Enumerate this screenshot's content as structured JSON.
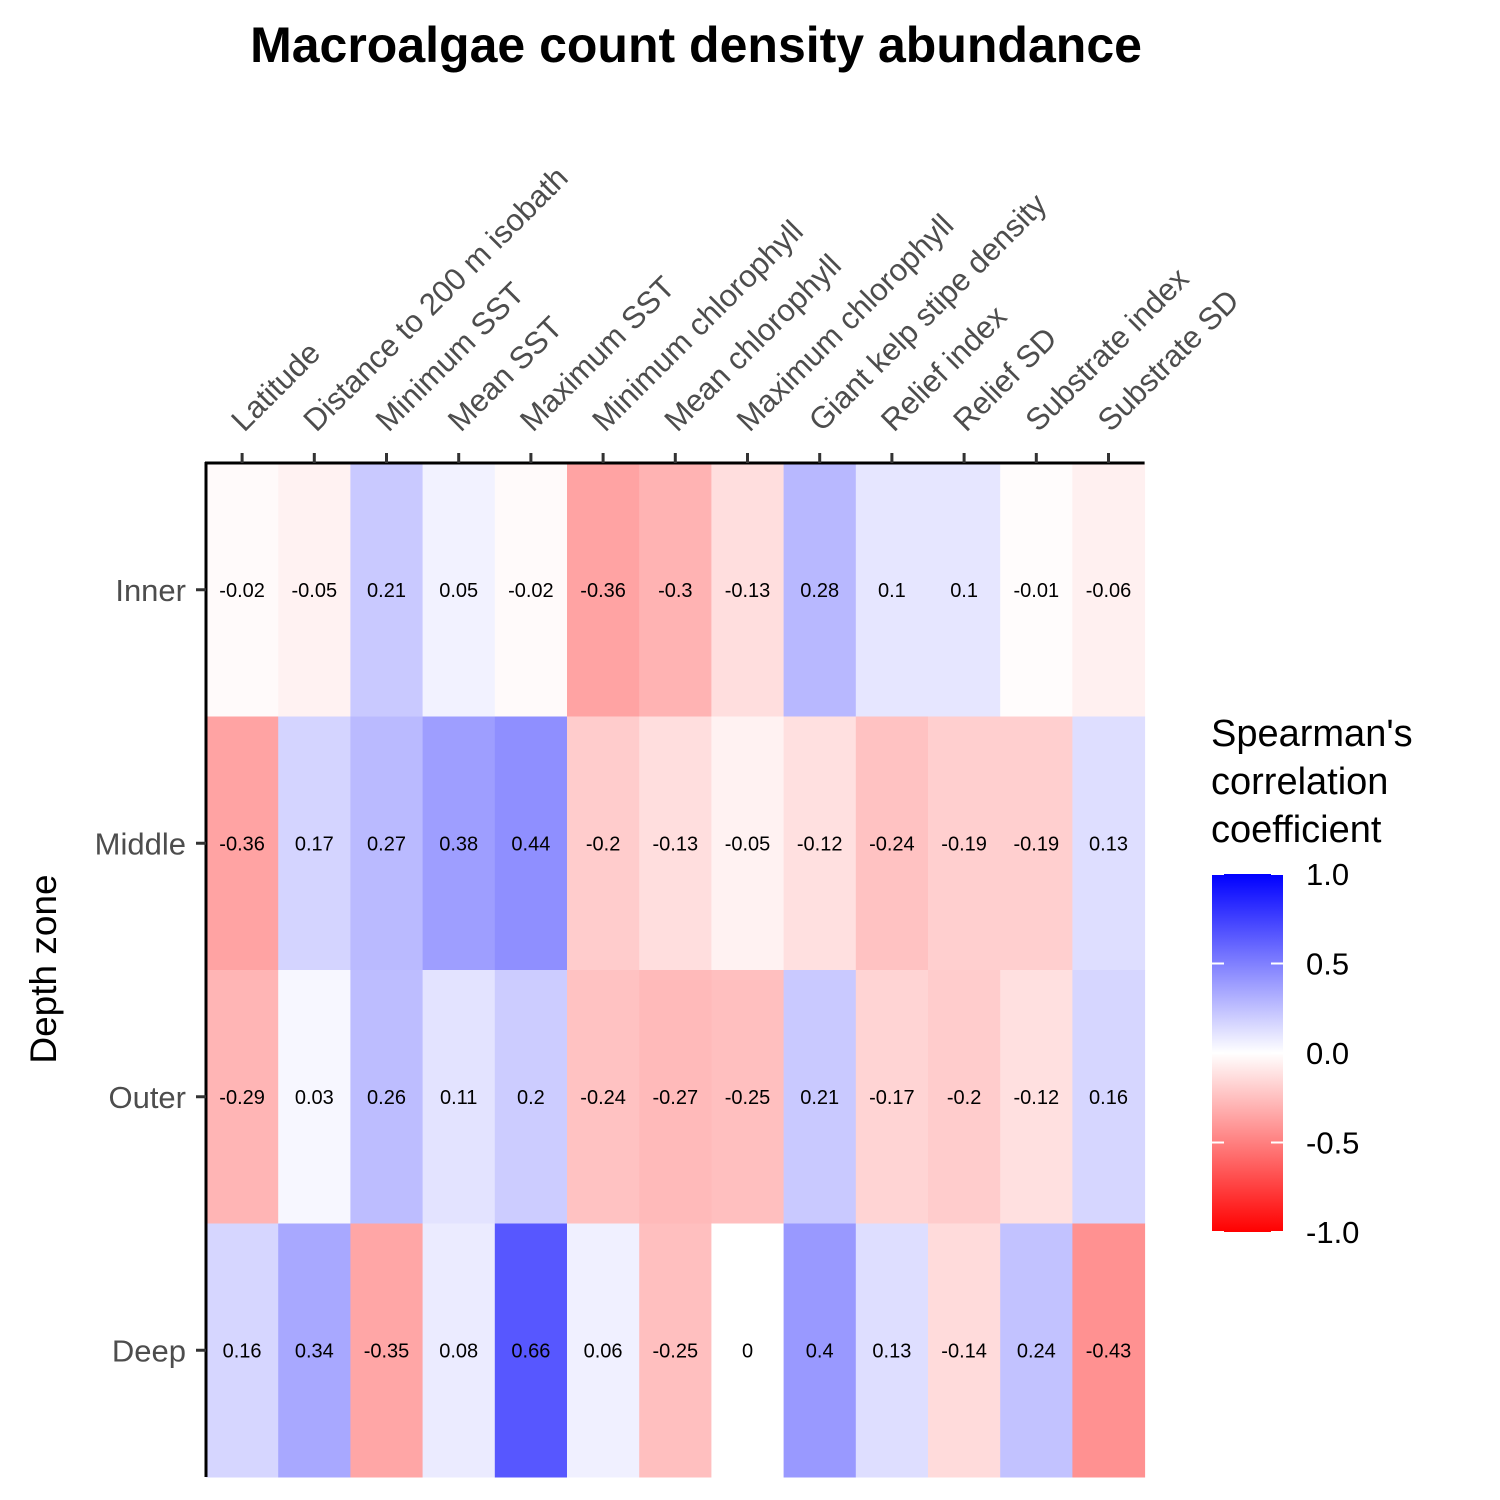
{
  "chart_data": {
    "type": "heatmap",
    "title": "Macroalgae count density abundance",
    "xlabel": "",
    "ylabel": "Depth zone",
    "x_categories": [
      "Latitude",
      "Distance to 200 m isobath",
      "Minimum SST",
      "Mean SST",
      "Maximum SST",
      "Minimum chlorophyll",
      "Mean chlorophyll",
      "Maximum chlorophyll",
      "Giant kelp stipe density",
      "Relief index",
      "Relief SD",
      "Substrate index",
      "Substrate SD"
    ],
    "y_categories": [
      "Inner",
      "Middle",
      "Outer",
      "Deep"
    ],
    "values": [
      [
        -0.02,
        -0.05,
        0.21,
        0.05,
        -0.02,
        -0.36,
        -0.3,
        -0.13,
        0.28,
        0.1,
        0.1,
        -0.01,
        -0.06
      ],
      [
        -0.36,
        0.17,
        0.27,
        0.38,
        0.44,
        -0.2,
        -0.13,
        -0.05,
        -0.12,
        -0.24,
        -0.19,
        -0.19,
        0.13
      ],
      [
        -0.29,
        0.03,
        0.26,
        0.11,
        0.2,
        -0.24,
        -0.27,
        -0.25,
        0.21,
        -0.17,
        -0.2,
        -0.12,
        0.16
      ],
      [
        0.16,
        0.34,
        -0.35,
        0.08,
        0.66,
        0.06,
        -0.25,
        0,
        0.4,
        0.13,
        -0.14,
        0.24,
        -0.43
      ]
    ],
    "cell_labels": [
      [
        "-0.02",
        "-0.05",
        "0.21",
        "0.05",
        "-0.02",
        "-0.36",
        "-0.3",
        "-0.13",
        "0.28",
        "0.1",
        "0.1",
        "-0.01",
        "-0.06"
      ],
      [
        "-0.36",
        "0.17",
        "0.27",
        "0.38",
        "0.44",
        "-0.2",
        "-0.13",
        "-0.05",
        "-0.12",
        "-0.24",
        "-0.19",
        "-0.19",
        "0.13"
      ],
      [
        "-0.29",
        "0.03",
        "0.26",
        "0.11",
        "0.2",
        "-0.24",
        "-0.27",
        "-0.25",
        "0.21",
        "-0.17",
        "-0.2",
        "-0.12",
        "0.16"
      ],
      [
        "0.16",
        "0.34",
        "-0.35",
        "0.08",
        "0.66",
        "0.06",
        "-0.25",
        "0",
        "0.4",
        "0.13",
        "-0.14",
        "0.24",
        "-0.43"
      ]
    ],
    "x_axis_position": "top",
    "grid": false,
    "legend": {
      "title_lines": [
        "Spearman's",
        "correlation",
        "coefficient"
      ],
      "placement": "right",
      "range": [
        -1.0,
        1.0
      ],
      "ticks": [
        1.0,
        0.5,
        0.0,
        -0.5,
        -1.0
      ],
      "tick_labels": [
        "1.0",
        "0.5",
        "0.0",
        "-0.5",
        "-1.0"
      ],
      "colors": {
        "low": "#ff0000",
        "mid": "#ffffff",
        "high": "#0000ff"
      }
    }
  }
}
